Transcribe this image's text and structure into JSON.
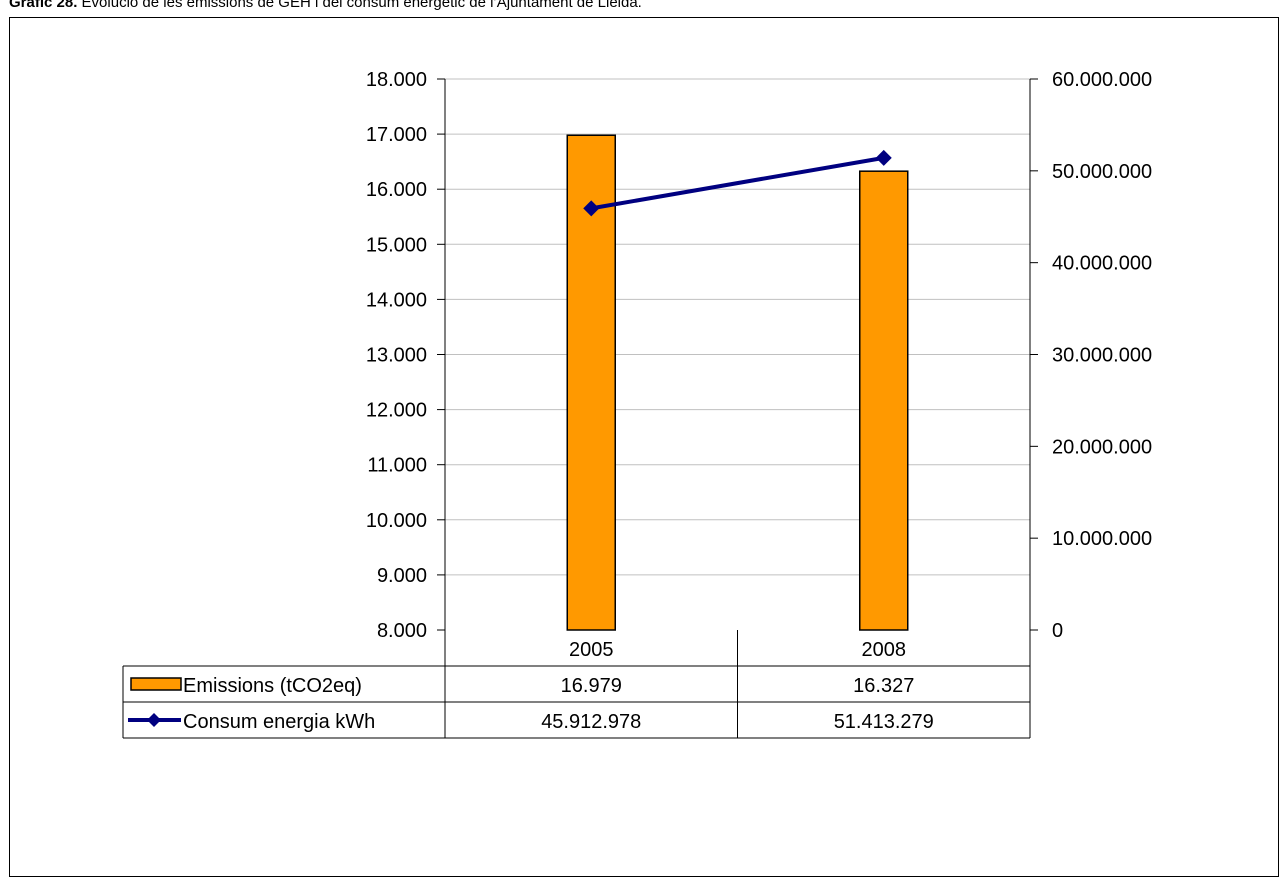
{
  "caption": {
    "label": "Gràfic 28.",
    "text": "Evolució de les emissions de GEH i del consum energètic de l’Ajuntament de Lleida."
  },
  "colors": {
    "bar_fill": "#FF9900",
    "bar_stroke": "#000000",
    "line": "#000080",
    "grid": "#C0C0C0"
  },
  "chart_data": {
    "type": "bar",
    "categories": [
      "2005",
      "2008"
    ],
    "series": [
      {
        "name": "Emissions  (tCO2eq)",
        "type": "bar",
        "axis": "left",
        "values": [
          16979,
          16327
        ],
        "labels": [
          "16.979",
          "16.327"
        ]
      },
      {
        "name": "Consum energia kWh",
        "type": "line",
        "axis": "right",
        "marker": "diamond",
        "values": [
          45912978,
          51413279
        ],
        "labels": [
          "45.912.978",
          "51.413.279"
        ]
      }
    ],
    "y_left": {
      "ylim": [
        8000,
        18000
      ],
      "ticks": [
        8000,
        9000,
        10000,
        11000,
        12000,
        13000,
        14000,
        15000,
        16000,
        17000,
        18000
      ],
      "tick_labels": [
        "8.000",
        "9.000",
        "10.000",
        "11.000",
        "12.000",
        "13.000",
        "14.000",
        "15.000",
        "16.000",
        "17.000",
        "18.000"
      ]
    },
    "y_right": {
      "ylim": [
        0,
        60000000
      ],
      "ticks": [
        0,
        10000000,
        20000000,
        30000000,
        40000000,
        50000000,
        60000000
      ],
      "tick_labels": [
        "0",
        "10.000.000",
        "20.000.000",
        "30.000.000",
        "40.000.000",
        "50.000.000",
        "60.000.000"
      ]
    },
    "grid": true,
    "legend": "data-table"
  }
}
